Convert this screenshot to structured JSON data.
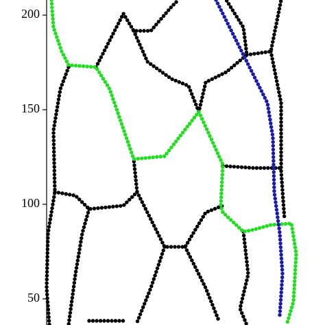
{
  "chart_data": {
    "type": "line",
    "xlim": [
      0,
      406
    ],
    "ylim": [
      36.2,
      208
    ],
    "yticks": [
      50,
      100,
      150,
      200
    ],
    "series": [
      {
        "color": "#000000",
        "x": [
          32,
          20,
          10,
          12,
          2,
          0,
          4,
          null,
          12,
          42,
          62,
          112,
          132,
          127,
          null,
          62,
          52,
          42,
          32,
          null,
          132,
          162,
          172,
          202,
          232,
          257,
          null,
          172,
          152,
          132,
          null,
          202,
          232,
          252,
          null,
          72,
          112,
          127,
          152,
          182,
          192,
          null,
          127,
          147,
          182,
          207,
          222,
          232,
          262,
          292,
          287,
          262,
          null,
          292,
          327,
          342,
          null,
          327,
          342,
          342,
          347,
          null,
          257,
          302,
          342,
          null,
          287,
          294,
          282,
          292,
          null,
          62,
          112
        ],
        "values": [
          172.5,
          160.9,
          139.1,
          106.5,
          84.8,
          55.8,
          36.2,
          null,
          106.5,
          104.6,
          97.5,
          99.3,
          106.5,
          123.9,
          null,
          97.5,
          84.8,
          63.0,
          36.2,
          null,
          106.5,
          84.8,
          77.5,
          77.5,
          95.7,
          99.3,
          null,
          77.5,
          55.8,
          37.7,
          null,
          77.5,
          55.8,
          37.7,
          null,
          172.5,
          200.8,
          191.7,
          191.7,
          204.4,
          208,
          null,
          191.7,
          175.4,
          166.3,
          162.6,
          148.9,
          164.5,
          169.9,
          179,
          193.5,
          208,
          null,
          179,
          180.8,
          208,
          null,
          180.8,
          153.6,
          117.4,
          92,
          null,
          120.3,
          119.2,
          119.2,
          null,
          85.5,
          63,
          44.9,
          36.2,
          null,
          38.4,
          38.4
        ]
      },
      {
        "color": "#22dd22",
        "x": [
          7,
          10,
          22,
          32,
          72,
          92,
          127,
          172,
          222,
          257,
          254,
          257,
          287,
          302,
          327,
          357,
          364,
          360,
          350
        ],
        "values": [
          208,
          193.5,
          180.8,
          173.6,
          172.5,
          160.9,
          123.9,
          125.4,
          148.9,
          121,
          99.3,
          95.7,
          85.5,
          86.6,
          89.1,
          89.9,
          73.9,
          48.6,
          36.2
        ]
      },
      {
        "color": "#1a1aaa",
        "x": [
          247,
          282,
          322,
          330,
          332,
          340,
          344,
          340
        ],
        "values": [
          208,
          182.6,
          153.6,
          135.5,
          106.5,
          84.8,
          63,
          41.3
        ]
      }
    ]
  }
}
